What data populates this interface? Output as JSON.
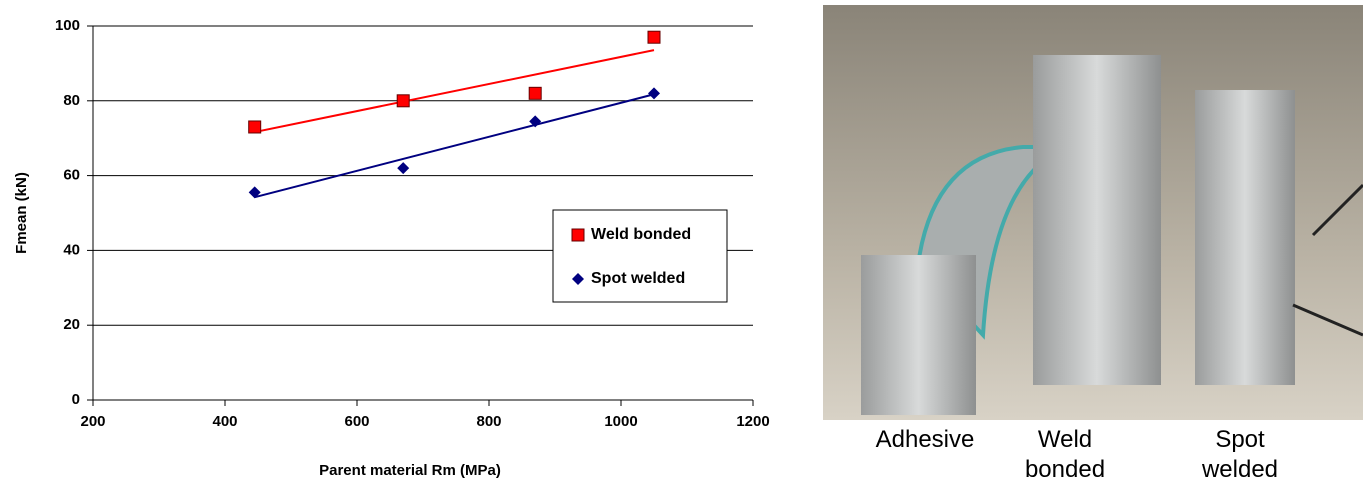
{
  "chart_data": {
    "type": "scatter",
    "x_label": "Parent material Rm (MPa)",
    "y_label": "Fmean (kN)",
    "xlim": [
      200,
      1200
    ],
    "xticks": [
      200,
      400,
      600,
      800,
      1000,
      1200
    ],
    "ylim": [
      0,
      100
    ],
    "yticks": [
      0,
      20,
      40,
      60,
      80,
      100
    ],
    "grid": true,
    "trendline": "linear",
    "legend": "right",
    "series": [
      {
        "name": "Weld bonded",
        "color": "#ff0000",
        "marker": "square",
        "x": [
          445,
          670,
          870,
          1050
        ],
        "values": [
          73,
          80,
          82,
          97
        ]
      },
      {
        "name": "Spot welded",
        "color": "#000080",
        "marker": "diamond",
        "x": [
          445,
          670,
          870,
          1050
        ],
        "values": [
          55.5,
          62,
          74.5,
          82
        ]
      }
    ]
  },
  "photo": {
    "captions": [
      "Adhesive",
      "Weld bonded",
      "Spot welded"
    ]
  }
}
